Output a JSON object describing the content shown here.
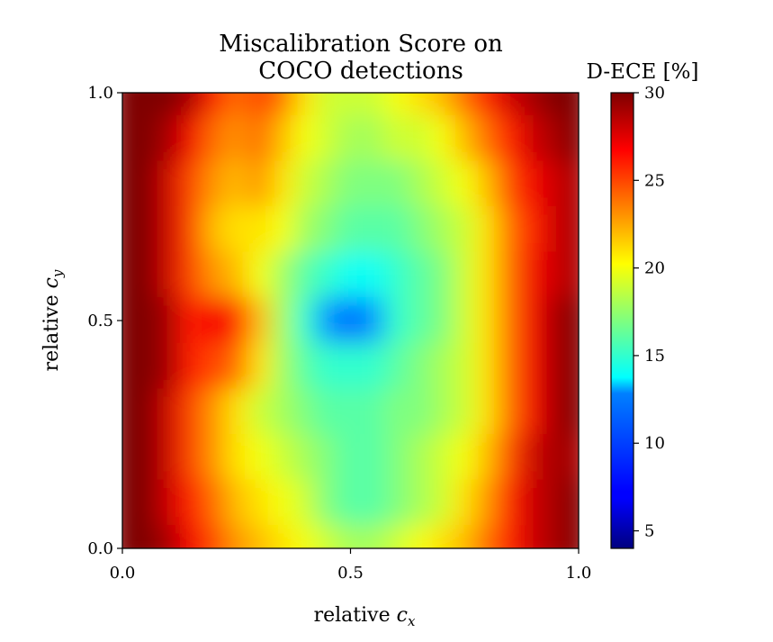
{
  "chart_data": {
    "type": "heatmap",
    "title": [
      "Miscalibration Score on",
      "COCO detections"
    ],
    "xlabel": {
      "prefix": "relative ",
      "var": "c",
      "sub": "x"
    },
    "ylabel": {
      "prefix": "relative ",
      "var": "c",
      "sub": "y"
    },
    "xlim": [
      0.0,
      1.0
    ],
    "ylim": [
      0.0,
      1.0
    ],
    "xticks": [
      0.0,
      0.5,
      1.0
    ],
    "xtick_labels": [
      "0.0",
      "0.5",
      "1.0"
    ],
    "yticks": [
      0.0,
      0.5,
      1.0
    ],
    "ytick_labels": [
      "0.0",
      "0.5",
      "1.0"
    ],
    "colormap": "jet",
    "colorbar": {
      "label": "D-ECE [%]",
      "vmin": 4,
      "vmax": 30,
      "ticks": [
        5,
        10,
        15,
        20,
        25,
        30
      ],
      "tick_labels": [
        "5",
        "10",
        "15",
        "20",
        "25",
        "30"
      ]
    },
    "grid": false,
    "x": [
      0.0,
      0.05,
      0.1,
      0.15,
      0.2,
      0.25,
      0.3,
      0.35,
      0.4,
      0.45,
      0.5,
      0.55,
      0.6,
      0.65,
      0.7,
      0.75,
      0.8,
      0.85,
      0.9,
      0.95,
      1.0
    ],
    "y": [
      1.0,
      0.9,
      0.8,
      0.7,
      0.6,
      0.5,
      0.4,
      0.3,
      0.2,
      0.1,
      0.0
    ],
    "z": [
      [
        30,
        30,
        30,
        29,
        26,
        24,
        25,
        24,
        21,
        19,
        19,
        19,
        20,
        21,
        22,
        24,
        26,
        28,
        29,
        30,
        30
      ],
      [
        30,
        30,
        29,
        27,
        24,
        23,
        24,
        22,
        20,
        19,
        18,
        18,
        19,
        19,
        20,
        22,
        24,
        26,
        28,
        29,
        30
      ],
      [
        30,
        30,
        28,
        25,
        23,
        22,
        23,
        21,
        19,
        18,
        17,
        17,
        17,
        18,
        19,
        20,
        22,
        25,
        27,
        28,
        29
      ],
      [
        30,
        30,
        28,
        25,
        22,
        21,
        21,
        20,
        18,
        17,
        16,
        16,
        16,
        17,
        18,
        19,
        21,
        24,
        26,
        28,
        29
      ],
      [
        30,
        30,
        28,
        25,
        23,
        22,
        20,
        18,
        16,
        15,
        14,
        14,
        15,
        16,
        17,
        19,
        21,
        24,
        27,
        28,
        29
      ],
      [
        30,
        30,
        29,
        26,
        27,
        26,
        22,
        18,
        15,
        13,
        12,
        13,
        15,
        16,
        17,
        19,
        21,
        24,
        27,
        29,
        30
      ],
      [
        30,
        30,
        29,
        26,
        25,
        24,
        21,
        18,
        16,
        15,
        15,
        15,
        16,
        17,
        18,
        19,
        21,
        24,
        27,
        29,
        30
      ],
      [
        30,
        30,
        28,
        25,
        23,
        21,
        19,
        18,
        17,
        16,
        16,
        16,
        17,
        17,
        18,
        19,
        21,
        24,
        27,
        29,
        30
      ],
      [
        30,
        30,
        28,
        25,
        23,
        21,
        20,
        19,
        18,
        17,
        16,
        16,
        17,
        18,
        19,
        20,
        22,
        25,
        28,
        29,
        29
      ],
      [
        30,
        30,
        28,
        26,
        24,
        22,
        21,
        20,
        19,
        17,
        16,
        16,
        17,
        18,
        19,
        21,
        23,
        26,
        28,
        29,
        30
      ],
      [
        30,
        30,
        29,
        27,
        25,
        23,
        22,
        21,
        20,
        19,
        18,
        18,
        19,
        20,
        21,
        22,
        24,
        26,
        28,
        29,
        30
      ]
    ]
  }
}
